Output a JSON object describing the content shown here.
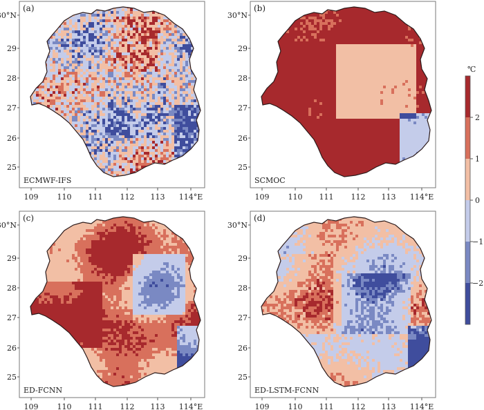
{
  "figure": {
    "panels": [
      {
        "letter": "(a)",
        "model": "ECMWF-IFS",
        "mode": "mixed"
      },
      {
        "letter": "(b)",
        "model": "SCMOC",
        "mode": "warm"
      },
      {
        "letter": "(c)",
        "model": "ED-FCNN",
        "mode": "warmish"
      },
      {
        "letter": "(d)",
        "model": "ED-LSTM-FCNN",
        "mode": "cool"
      }
    ],
    "lat_ticks": [
      "25",
      "26",
      "27",
      "28",
      "29",
      "30°N"
    ],
    "lon_ticks": [
      "109",
      "110",
      "111",
      "112",
      "113",
      "114°E"
    ],
    "colorbar": {
      "unit": "℃",
      "tick_labels": [
        "2",
        "1",
        "0",
        "−1",
        "−2"
      ],
      "colors": [
        "#a7292d",
        "#d8705c",
        "#f2bfa5",
        "#c4ccea",
        "#7a89c3",
        "#3f4d9d"
      ]
    }
  }
}
